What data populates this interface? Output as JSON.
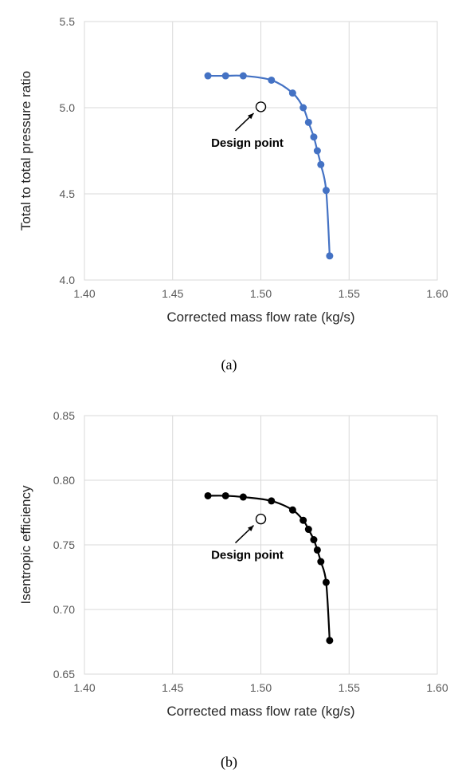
{
  "chart_data": [
    {
      "type": "line",
      "xlabel": "Corrected mass flow rate (kg/s)",
      "ylabel": "Total to total pressure ratio",
      "xlim": [
        1.4,
        1.6
      ],
      "ylim": [
        4.0,
        5.5
      ],
      "xticks": [
        "1.40",
        "1.45",
        "1.50",
        "1.55",
        "1.60"
      ],
      "yticks": [
        "4.0",
        "4.5",
        "5.0",
        "5.5"
      ],
      "grid": true,
      "series_color": "#4472C4",
      "x": [
        1.47,
        1.48,
        1.49,
        1.506,
        1.518,
        1.524,
        1.527,
        1.53,
        1.532,
        1.534,
        1.537,
        1.539
      ],
      "y": [
        5.185,
        5.185,
        5.185,
        5.16,
        5.085,
        5.0,
        4.915,
        4.83,
        4.75,
        4.67,
        4.52,
        4.14
      ],
      "design_point": {
        "x": 1.5,
        "y": 5.005
      },
      "annotation": "Design point",
      "caption": "(a)"
    },
    {
      "type": "line",
      "xlabel": "Corrected mass flow rate (kg/s)",
      "ylabel": "Isentropic efficiency",
      "xlim": [
        1.4,
        1.6
      ],
      "ylim": [
        0.65,
        0.85
      ],
      "xticks": [
        "1.40",
        "1.45",
        "1.50",
        "1.55",
        "1.60"
      ],
      "yticks": [
        "0.65",
        "0.70",
        "0.75",
        "0.80",
        "0.85"
      ],
      "grid": true,
      "series_color": "#000000",
      "x": [
        1.47,
        1.48,
        1.49,
        1.506,
        1.518,
        1.524,
        1.527,
        1.53,
        1.532,
        1.534,
        1.537,
        1.539
      ],
      "y": [
        0.788,
        0.788,
        0.787,
        0.784,
        0.777,
        0.769,
        0.762,
        0.754,
        0.746,
        0.737,
        0.721,
        0.676
      ],
      "design_point": {
        "x": 1.5,
        "y": 0.77
      },
      "annotation": "Design point",
      "caption": "(b)"
    }
  ]
}
